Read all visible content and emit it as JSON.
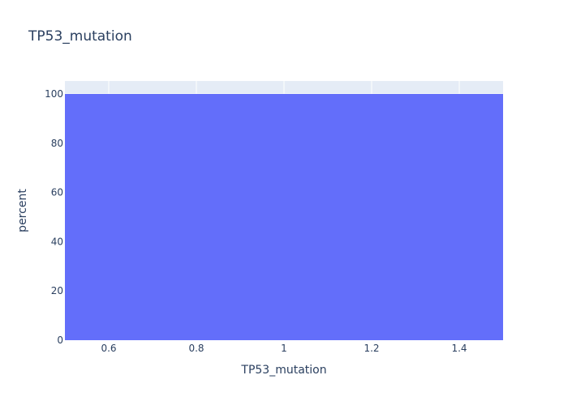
{
  "chart_data": {
    "type": "bar",
    "title": "TP53_mutation",
    "xlabel": "TP53_mutation",
    "ylabel": "percent",
    "x": [
      1
    ],
    "values": [
      100
    ],
    "bar_width": 1,
    "xlim": [
      0.5,
      1.5
    ],
    "ylim": [
      0,
      105.26
    ],
    "x_ticks": [
      0.6,
      0.8,
      1,
      1.2,
      1.4
    ],
    "x_tick_labels": [
      "0.6",
      "0.8",
      "1",
      "1.2",
      "1.4"
    ],
    "y_ticks": [
      0,
      20,
      40,
      60,
      80,
      100
    ],
    "y_tick_labels": [
      "0",
      "20",
      "40",
      "60",
      "80",
      "100"
    ],
    "grid": true,
    "colors": {
      "bar": "#636efa",
      "plot_bg": "#e5ecf6",
      "grid": "#ffffff",
      "text": "#2a3f5f"
    }
  }
}
